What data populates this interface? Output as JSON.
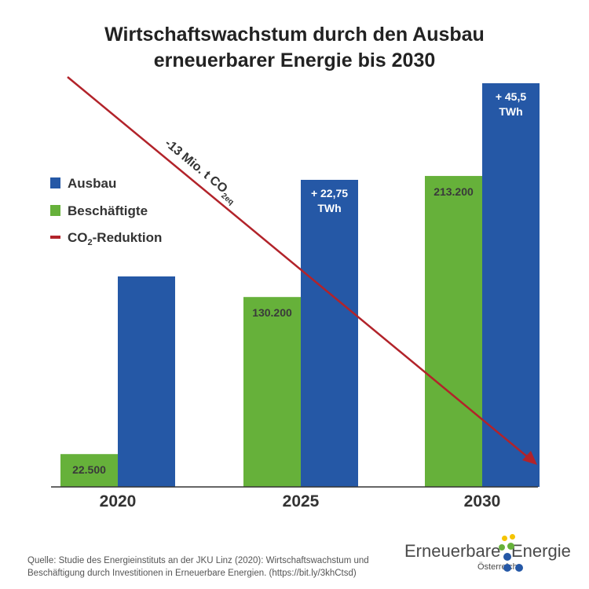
{
  "title": {
    "line1": "Wirtschaftswachstum durch den Ausbau",
    "line2": "erneuerbarer Energie bis 2030"
  },
  "colors": {
    "ausbau": "#2558a6",
    "beschaeftigte": "#66b13a",
    "co2": "#b2232a",
    "axis": "#333333"
  },
  "chart_data": {
    "type": "bar",
    "categories": [
      "2020",
      "2025",
      "2030"
    ],
    "series": [
      {
        "name": "Beschäftigte",
        "values": [
          22500,
          130200,
          213200
        ],
        "labels": [
          "22.500",
          "130.200",
          "213.200"
        ]
      },
      {
        "name": "Ausbau",
        "values": [
          null,
          null,
          null
        ],
        "labels": [
          "",
          "+ 22,75\nTWh",
          "+ 45,5\nTWh"
        ]
      }
    ],
    "legend": {
      "placement": "left",
      "items": [
        {
          "key": "ausbau",
          "label": "Ausbau"
        },
        {
          "key": "beschaeftigte",
          "label": "Beschäftigte"
        },
        {
          "key": "co2",
          "label_main": "CO",
          "label_sub": "2",
          "label_rest": "-Reduktion"
        }
      ]
    },
    "annotation": {
      "main": "-13 Mio. t CO",
      "sub": "2eq"
    },
    "ylim": [
      0,
      280000
    ],
    "grid": false
  },
  "source": "Quelle: Studie des Energieinstituts an der JKU Linz (2020): Wirtschaftswachstum und Beschäftigung durch Investitionen in Erneuerbare Energien. (https://bit.ly/3khCtsd)",
  "logo": {
    "word1": "Erneuerbare",
    "word2": "Energie",
    "sub": "Österreich"
  }
}
